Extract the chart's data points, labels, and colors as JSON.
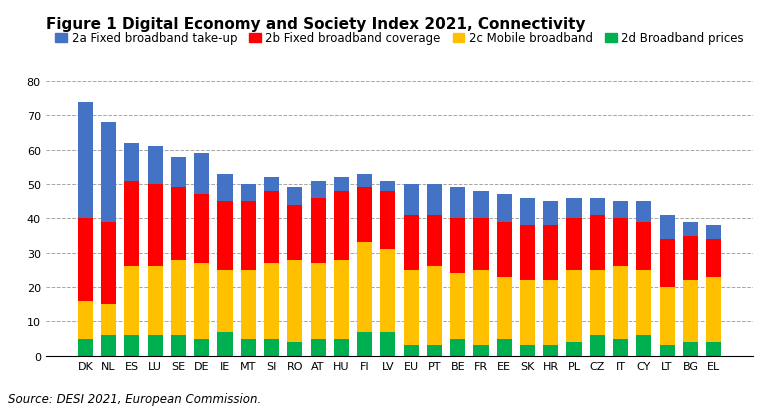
{
  "title": "Figure 1 Digital Economy and Society Index 2021, Connectivity",
  "source": "Source: DESI 2021, European Commission.",
  "categories": [
    "DK",
    "NL",
    "ES",
    "LU",
    "SE",
    "DE",
    "IE",
    "MT",
    "SI",
    "RO",
    "AT",
    "HU",
    "FI",
    "LV",
    "EU",
    "PT",
    "BE",
    "FR",
    "EE",
    "SK",
    "HR",
    "PL",
    "CZ",
    "IT",
    "CY",
    "LT",
    "BG",
    "EL"
  ],
  "series_order": [
    "2d Broadband prices",
    "2c Mobile broadband",
    "2b Fixed broadband coverage",
    "2a Fixed broadband take-up"
  ],
  "series": {
    "2a Fixed broadband take-up": [
      34,
      29,
      11,
      11,
      9,
      12,
      8,
      5,
      4,
      5,
      5,
      4,
      4,
      3,
      9,
      9,
      9,
      8,
      8,
      8,
      7,
      6,
      5,
      5,
      6,
      7,
      4,
      4
    ],
    "2b Fixed broadband coverage": [
      24,
      24,
      25,
      24,
      21,
      20,
      20,
      20,
      21,
      16,
      19,
      20,
      16,
      17,
      16,
      15,
      16,
      15,
      16,
      16,
      16,
      15,
      16,
      14,
      14,
      14,
      13,
      11
    ],
    "2c Mobile broadband": [
      11,
      9,
      20,
      20,
      22,
      22,
      18,
      20,
      22,
      24,
      22,
      23,
      26,
      24,
      22,
      23,
      19,
      22,
      18,
      19,
      19,
      21,
      19,
      21,
      19,
      17,
      18,
      19
    ],
    "2d Broadband prices": [
      5,
      6,
      6,
      6,
      6,
      5,
      7,
      5,
      5,
      4,
      5,
      5,
      7,
      7,
      3,
      3,
      5,
      3,
      5,
      3,
      3,
      4,
      6,
      5,
      6,
      3,
      4,
      4
    ]
  },
  "colors": {
    "2a Fixed broadband take-up": "#4472C4",
    "2b Fixed broadband coverage": "#FF0000",
    "2c Mobile broadband": "#FFC000",
    "2d Broadband prices": "#00B050"
  },
  "legend_order": [
    "2a Fixed broadband take-up",
    "2b Fixed broadband coverage",
    "2c Mobile broadband",
    "2d Broadband prices"
  ],
  "ylim": [
    0,
    80
  ],
  "yticks": [
    0,
    10,
    20,
    30,
    40,
    50,
    60,
    70,
    80
  ],
  "background_color": "#FFFFFF",
  "title_fontsize": 11,
  "legend_fontsize": 8.5,
  "tick_fontsize": 8
}
